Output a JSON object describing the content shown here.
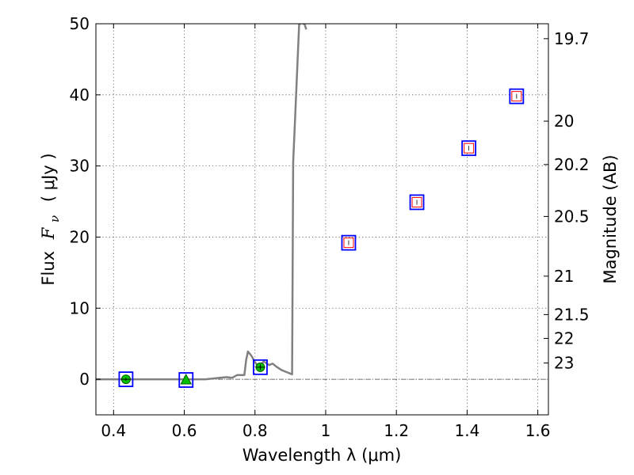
{
  "chart_data": {
    "type": "scatter",
    "xlabel": "Wavelength  λ (μm)",
    "ylabel_parts": [
      "Flux",
      "F",
      "ν",
      "( μJy )"
    ],
    "y2label": "Magnitude (AB)",
    "xlim": [
      0.35,
      1.63
    ],
    "ylim": [
      -5,
      50
    ],
    "grid": true,
    "x_ticks": [
      "0.4",
      "0.6",
      "0.8",
      "1",
      "1.2",
      "1.4",
      "1.6"
    ],
    "y_ticks": [
      "0",
      "10",
      "20",
      "30",
      "40",
      "50"
    ],
    "y2_ticks": [
      {
        "label": "19.7",
        "flux": 47.9
      },
      {
        "label": "20",
        "flux": 36.3
      },
      {
        "label": "20.2",
        "flux": 30.2
      },
      {
        "label": "20.5",
        "flux": 22.9
      },
      {
        "label": "21",
        "flux": 14.5
      },
      {
        "label": "21.5",
        "flux": 9.1
      },
      {
        "label": "22",
        "flux": 5.75
      },
      {
        "label": "23",
        "flux": 2.29
      }
    ],
    "colors": {
      "model": "#808080",
      "box": "#0000ff",
      "square": "#ff0000",
      "detection": "#00c000"
    },
    "zero_line": 0,
    "model_sed": {
      "name": "",
      "x": [
        0.35,
        0.66,
        0.7,
        0.72,
        0.735,
        0.75,
        0.77,
        0.775,
        0.78,
        0.79,
        0.8,
        0.81,
        0.825,
        0.84,
        0.85,
        0.86,
        0.875,
        0.89,
        0.905,
        0.908,
        0.912,
        0.925,
        0.93
      ],
      "y": [
        0,
        0,
        0.2,
        0.3,
        0.2,
        0.6,
        0.6,
        2.7,
        3.9,
        3.3,
        2.4,
        1.8,
        2.5,
        2.0,
        2.2,
        1.8,
        1.3,
        1.0,
        0.7,
        30.5,
        35.0,
        50.0,
        50.0
      ]
    },
    "model_sed_tail": {
      "x": [
        0.935,
        0.94,
        0.945
      ],
      "y": [
        50.0,
        50.0,
        49.2
      ]
    },
    "photometry_boxes": {
      "name": "",
      "x": [
        0.435,
        0.605,
        0.815,
        1.065,
        1.258,
        1.405,
        1.54
      ],
      "y": [
        0.0,
        -0.1,
        1.7,
        19.2,
        24.9,
        32.5,
        39.8
      ]
    },
    "photometry_squares": {
      "name": "",
      "x": [
        1.065,
        1.258,
        1.405,
        1.54
      ],
      "y": [
        19.2,
        24.9,
        32.5,
        39.8
      ]
    },
    "detections_circle": {
      "name": "",
      "x": [
        0.435,
        0.815
      ],
      "y": [
        0.0,
        1.7
      ],
      "yerr": [
        0.2,
        0.4
      ]
    },
    "detections_triangle": {
      "name": "",
      "x": [
        0.605
      ],
      "y": [
        -0.1
      ]
    }
  }
}
